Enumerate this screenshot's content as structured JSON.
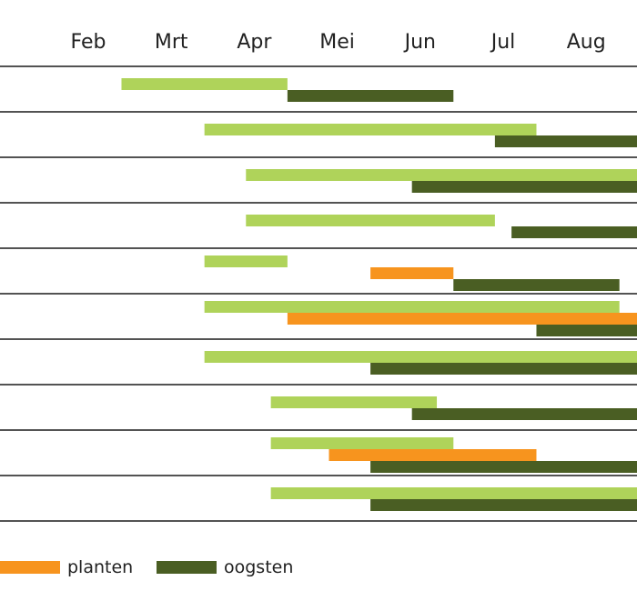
{
  "chart_data": {
    "type": "gantt",
    "title": "",
    "months": [
      "Feb",
      "Mrt",
      "Apr",
      "Mei",
      "Jun",
      "Jul",
      "Aug"
    ],
    "colors": {
      "zaaien": "#afd35a",
      "planten": "#f7941e",
      "oogsten": "#4a5e23"
    },
    "rows": [
      {
        "zaaien": [
          1.4,
          3.4
        ],
        "oogsten": [
          3.4,
          5.4
        ]
      },
      {
        "zaaien": [
          2.4,
          6.4
        ],
        "oogsten": [
          5.9,
          8.6
        ]
      },
      {
        "zaaien": [
          2.9,
          7.9
        ],
        "oogsten": [
          4.9,
          8.6
        ]
      },
      {
        "zaaien": [
          2.9,
          5.9
        ],
        "oogsten": [
          6.1,
          8.6
        ]
      },
      {
        "zaaien": [
          2.4,
          3.4
        ],
        "planten": [
          4.4,
          5.4
        ],
        "oogsten": [
          5.4,
          7.4
        ]
      },
      {
        "zaaien": [
          2.4,
          7.4
        ],
        "planten": [
          3.4,
          8.6
        ],
        "oogsten": [
          6.4,
          8.6
        ]
      },
      {
        "zaaien": [
          2.4,
          8.6
        ],
        "oogsten": [
          4.4,
          8.6
        ]
      },
      {
        "zaaien": [
          3.2,
          5.2
        ],
        "oogsten": [
          4.9,
          8.6
        ]
      },
      {
        "zaaien": [
          3.2,
          5.4
        ],
        "planten": [
          3.9,
          6.4
        ],
        "oogsten": [
          4.4,
          8.6
        ]
      },
      {
        "zaaien": [
          3.2,
          7.9
        ],
        "oogsten": [
          4.4,
          8.6
        ]
      }
    ],
    "legend": [
      {
        "key": "planten",
        "label": "planten"
      },
      {
        "key": "oogsten",
        "label": "oogsten"
      }
    ]
  }
}
